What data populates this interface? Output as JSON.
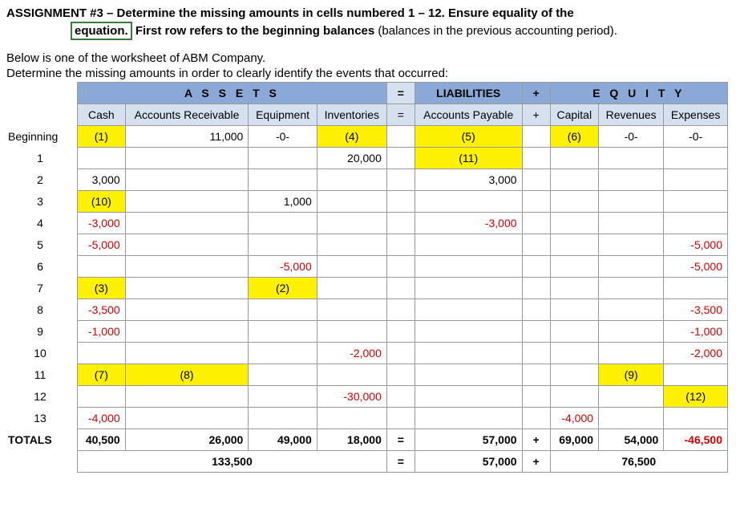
{
  "title": "ASSIGNMENT #3 – Determine the missing amounts in cells numbered 1 – 12.  Ensure equality of the",
  "equation_box": "equation.",
  "subtitle_rest": "First row refers to the beginning balances",
  "subtitle_paren": " (balances in the previous accounting period).",
  "intro1": "Below is one of the worksheet of ABM Company.",
  "intro2": "Determine the missing amounts in order to clearly identify the events that occurred:",
  "sections": {
    "assets": "A S S E T S",
    "liabilities": "LIABILITIES",
    "equity": "E Q U I T Y"
  },
  "cols": {
    "cash": "Cash",
    "ar": "Accounts Receivable",
    "equipment": "Equipment",
    "inventories": "Inventories",
    "ap": "Accounts Payable",
    "capital": "Capital",
    "revenues": "Revenues",
    "expenses": "Expenses"
  },
  "rows": {
    "beginning": "Beginning",
    "r1": "1",
    "r2": "2",
    "r3": "3",
    "r4": "4",
    "r5": "5",
    "r6": "6",
    "r7": "7",
    "r8": "8",
    "r9": "9",
    "r10": "10",
    "r11": "11",
    "r12": "12",
    "r13": "13",
    "totals": "TOTALS"
  },
  "cells": {
    "beg_cash": "(1)",
    "beg_ar": "11,000",
    "beg_equipment": "-0-",
    "beg_inv": "(4)",
    "beg_ap": "(5)",
    "beg_capital": "(6)",
    "beg_rev": "-0-",
    "beg_exp": "-0-",
    "r1_inv": "20,000",
    "r1_ap": "(11)",
    "r2_cash": "3,000",
    "r2_ap": "3,000",
    "r3_cash": "(10)",
    "r3_equipment": "1,000",
    "r4_cash": "-3,000",
    "r4_ap": "-3,000",
    "r5_cash": "-5,000",
    "r5_exp": "-5,000",
    "r6_equipment": "-5,000",
    "r6_exp": "-5,000",
    "r7_cash": "(3)",
    "r7_equipment": "(2)",
    "r8_cash": "-3,500",
    "r8_exp": "-3,500",
    "r9_cash": "-1,000",
    "r9_exp": "-1,000",
    "r10_inv": "-2,000",
    "r10_exp": "-2,000",
    "r11_cash": "(7)",
    "r11_ar": "(8)",
    "r11_rev": "(9)",
    "r12_inv": "-30,000",
    "r12_exp": "(12)",
    "r13_cash": "-4,000",
    "r13_capital": "-4,000",
    "tot_cash": "40,500",
    "tot_ar": "26,000",
    "tot_equipment": "49,000",
    "tot_inv": "18,000",
    "tot_ap": "57,000",
    "tot_capital": "69,000",
    "tot_rev": "54,000",
    "tot_exp": "-46,500",
    "tot_assets": "133,500",
    "tot_liab": "57,000",
    "tot_equity": "76,500"
  },
  "ops": {
    "eq": "=",
    "plus": "+"
  },
  "colors": {
    "section_bg": "#8ba9d6",
    "header_bg": "#d6e1f0",
    "yellow": "#fff200",
    "red": "#d40000"
  }
}
